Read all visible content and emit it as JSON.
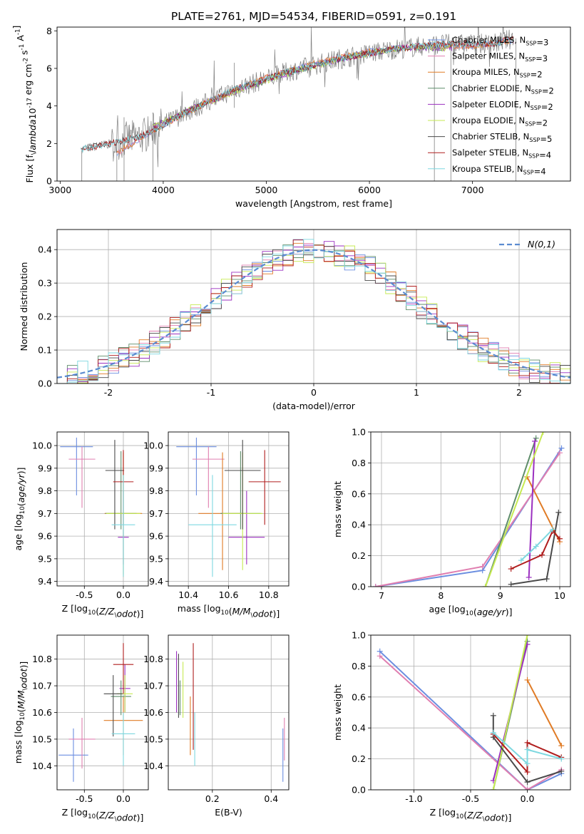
{
  "title": "PLATE=2761, MJD=54534, FIBERID=0591, z=0.191",
  "colors": {
    "Chabrier MILES": "#6b8ee0",
    "Salpeter MILES": "#e07fb0",
    "Kroupa MILES": "#e07b25",
    "Chabrier ELODIE": "#5e8d6a",
    "Salpeter ELODIE": "#9b30c0",
    "Kroupa ELODIE": "#c6ea52",
    "Chabrier STELIB": "#4a4a4a",
    "Salpeter STELIB": "#b01e1e",
    "Kroupa STELIB": "#7ed8e0"
  },
  "chart_data": [
    {
      "type": "line",
      "panel": "spectrum",
      "xlabel": "wavelength [Angstrom, rest frame]",
      "ylabel": "Flux [f$_\\lambda$10$^{-17}$ erg cm$^{-2}$ s$^{-1}$ A$^{-1}$]",
      "xlim": [
        2970,
        7950
      ],
      "ylim": [
        0,
        8.2
      ],
      "xticks": [
        3000,
        4000,
        5000,
        6000,
        7000
      ],
      "yticks": [
        0,
        2,
        4,
        6,
        8
      ],
      "grid": false,
      "legend_position": "lower right",
      "data_color": "#808080",
      "series": [
        {
          "name": "Chabrier MILES, N$_{SSP}$=3",
          "x": [
            3550,
            4000,
            4500,
            5000,
            5500,
            6000,
            6500,
            7000,
            7400
          ],
          "values": [
            1.5,
            3.0,
            4.4,
            5.5,
            6.3,
            6.9,
            7.2,
            7.2,
            7.5
          ]
        },
        {
          "name": "Salpeter MILES, N$_{SSP}$=3",
          "x": [
            3550,
            4000,
            4500,
            5000,
            5500,
            6000,
            6500,
            7000,
            7400
          ],
          "values": [
            1.5,
            3.0,
            4.4,
            5.5,
            6.3,
            6.9,
            7.2,
            7.2,
            7.5
          ]
        },
        {
          "name": "Kroupa MILES, N$_{SSP}$=2",
          "x": [
            3550,
            4000,
            4500,
            5000,
            5500,
            6000,
            6500,
            7000,
            7400
          ],
          "values": [
            1.5,
            3.0,
            4.4,
            5.5,
            6.3,
            6.9,
            7.2,
            7.2,
            7.5
          ]
        },
        {
          "name": "Chabrier ELODIE, N$_{SSP}$=2",
          "x": [
            3900,
            4300,
            4800,
            5300,
            5800,
            6300,
            6800
          ],
          "values": [
            2.9,
            3.9,
            5.0,
            5.9,
            6.6,
            7.1,
            7.1
          ]
        },
        {
          "name": "Salpeter ELODIE, N$_{SSP}$=2",
          "x": [
            3900,
            4300,
            4800,
            5300,
            5800,
            6300,
            6800
          ],
          "values": [
            2.9,
            3.9,
            5.0,
            5.9,
            6.6,
            7.1,
            7.1
          ]
        },
        {
          "name": "Kroupa ELODIE, N$_{SSP}$=2",
          "x": [
            3900,
            4300,
            4800,
            5300,
            5800,
            6300,
            6800
          ],
          "values": [
            2.9,
            3.9,
            5.0,
            5.9,
            6.6,
            7.1,
            7.1
          ]
        },
        {
          "name": "Chabrier STELIB, N$_{SSP}$=5",
          "x": [
            3200,
            3500,
            3800,
            4200,
            4700,
            5200,
            5700,
            6200,
            6700,
            7200,
            7400
          ],
          "values": [
            1.7,
            2.0,
            2.4,
            3.6,
            4.9,
            5.8,
            6.5,
            7.0,
            7.3,
            7.3,
            7.6
          ]
        },
        {
          "name": "Salpeter STELIB, N$_{SSP}$=4",
          "x": [
            3200,
            3500,
            3800,
            4200,
            4700,
            5200,
            5700,
            6200,
            6700,
            7200,
            7400
          ],
          "values": [
            1.7,
            2.0,
            2.4,
            3.6,
            4.9,
            5.8,
            6.5,
            7.0,
            7.3,
            7.3,
            7.6
          ]
        },
        {
          "name": "Kroupa STELIB, N$_{SSP}$=4",
          "x": [
            3200,
            3500,
            3800,
            4200,
            4700,
            5200,
            5700,
            6200,
            6700,
            7200,
            7400
          ],
          "values": [
            1.7,
            2.0,
            2.4,
            3.6,
            4.9,
            5.8,
            6.5,
            7.0,
            7.3,
            7.3,
            7.6
          ]
        }
      ]
    },
    {
      "type": "line",
      "panel": "residuals",
      "xlabel": "(data-model)/error",
      "ylabel": "Normed distribution",
      "xlim": [
        -2.5,
        2.5
      ],
      "ylim": [
        0,
        0.46
      ],
      "xticks": [
        -2,
        -1,
        0,
        1,
        2
      ],
      "yticks": [
        0.0,
        0.1,
        0.2,
        0.3,
        0.4
      ],
      "grid": true,
      "legend_position": "upper right",
      "legend": "$\\mathcal{N}(0,1)$",
      "gaussian": {
        "mean": 0,
        "sigma": 1,
        "style": "dashed",
        "color": "#5b8bd0"
      }
    },
    {
      "type": "scatter",
      "panel": "age-vs-Z",
      "xlabel": "Z [log$_{10}$($Z/Z_\\odot$)]",
      "ylabel": "age  [log$_{10}$($age/yr$)]",
      "xlim": [
        -0.85,
        0.32
      ],
      "ylim": [
        9.38,
        10.06
      ],
      "xticks": [
        -0.5,
        0.0
      ],
      "yticks": [
        9.4,
        9.5,
        9.6,
        9.7,
        9.8,
        9.9,
        10.0
      ],
      "grid": true,
      "points": [
        {
          "name": "Chabrier MILES",
          "x": -0.6,
          "y": 9.995,
          "xerr": 0.21,
          "ylo": 9.78,
          "yhi": 10.035
        },
        {
          "name": "Salpeter MILES",
          "x": -0.53,
          "y": 9.94,
          "xerr": 0.17,
          "ylo": 9.725,
          "yhi": 9.995
        },
        {
          "name": "Kroupa MILES",
          "x": 0.0,
          "y": 9.7,
          "xerr": 0.24,
          "ylo": 9.42,
          "yhi": 9.97
        },
        {
          "name": "Chabrier ELODIE",
          "x": -0.03,
          "y": 9.7,
          "xerr": 0.2,
          "ylo": 9.63,
          "yhi": 9.975
        },
        {
          "name": "Salpeter ELODIE",
          "x": 0.0,
          "y": 9.595,
          "xerr": 0.07,
          "ylo": 9.475,
          "yhi": 9.8
        },
        {
          "name": "Kroupa ELODIE",
          "x": 0.0,
          "y": 9.7,
          "xerr": 0.22,
          "ylo": 9.43,
          "yhi": 9.97
        },
        {
          "name": "Chabrier STELIB",
          "x": -0.11,
          "y": 9.89,
          "xerr": 0.12,
          "ylo": 9.63,
          "yhi": 10.025
        },
        {
          "name": "Salpeter STELIB",
          "x": 0.0,
          "y": 9.84,
          "xerr": 0.13,
          "ylo": 9.65,
          "yhi": 9.98
        },
        {
          "name": "Kroupa STELIB",
          "x": 0.0,
          "y": 9.65,
          "xerr": 0.15,
          "ylo": 9.42,
          "yhi": 9.87
        }
      ]
    },
    {
      "type": "scatter",
      "panel": "age-vs-mass",
      "xlabel": "mass [log$_{10}$($M/M_\\odot$)]",
      "xlim": [
        10.3,
        10.9
      ],
      "ylim": [
        9.38,
        10.06
      ],
      "xticks": [
        10.4,
        10.6,
        10.8
      ],
      "yticks": [
        9.4,
        9.5,
        9.6,
        9.7,
        9.8,
        9.9,
        10.0
      ],
      "grid": true,
      "points": [
        {
          "name": "Chabrier MILES",
          "x": 10.44,
          "y": 9.995,
          "xerr": 0.1,
          "ylo": 9.78,
          "yhi": 10.035
        },
        {
          "name": "Salpeter MILES",
          "x": 10.5,
          "y": 9.94,
          "xerr": 0.08,
          "ylo": 9.725,
          "yhi": 9.995
        },
        {
          "name": "Kroupa MILES",
          "x": 10.57,
          "y": 9.7,
          "xerr": 0.12,
          "ylo": 9.45,
          "yhi": 9.97
        },
        {
          "name": "Chabrier ELODIE",
          "x": 10.66,
          "y": 9.7,
          "xerr": 0.1,
          "ylo": 9.63,
          "yhi": 9.975
        },
        {
          "name": "Salpeter ELODIE",
          "x": 10.69,
          "y": 9.595,
          "xerr": 0.09,
          "ylo": 9.475,
          "yhi": 9.8
        },
        {
          "name": "Kroupa ELODIE",
          "x": 10.67,
          "y": 9.7,
          "xerr": 0.1,
          "ylo": 9.45,
          "yhi": 9.97
        },
        {
          "name": "Chabrier STELIB",
          "x": 10.67,
          "y": 9.89,
          "xerr": 0.09,
          "ylo": 9.63,
          "yhi": 10.025
        },
        {
          "name": "Salpeter STELIB",
          "x": 10.78,
          "y": 9.84,
          "xerr": 0.08,
          "ylo": 9.65,
          "yhi": 9.98
        },
        {
          "name": "Kroupa STELIB",
          "x": 10.52,
          "y": 9.65,
          "xerr": 0.12,
          "ylo": 9.42,
          "yhi": 9.87
        }
      ]
    },
    {
      "type": "line",
      "panel": "mass-weight-vs-age",
      "xlabel": "age  [log$_{10}$($age/yr$)]",
      "ylabel": "mass weight",
      "xlim": [
        6.82,
        10.18
      ],
      "ylim": [
        0,
        1
      ],
      "xticks": [
        7,
        8,
        9,
        10
      ],
      "yticks": [
        0.0,
        0.2,
        0.4,
        0.6,
        0.8,
        1.0
      ],
      "grid": true,
      "series": [
        {
          "name": "Chabrier MILES",
          "x": [
            6.9,
            8.7,
            10.03
          ],
          "values": [
            0.0,
            0.105,
            0.895
          ]
        },
        {
          "name": "Salpeter MILES",
          "x": [
            6.9,
            8.7,
            10.0
          ],
          "values": [
            0.0,
            0.13,
            0.865
          ]
        },
        {
          "name": "Kroupa MILES",
          "x": [
            9.45,
            10.0
          ],
          "values": [
            0.71,
            0.29
          ]
        },
        {
          "name": "Chabrier ELODIE",
          "x": [
            8.75,
            9.6
          ],
          "values": [
            0.0,
            0.96
          ]
        },
        {
          "name": "Salpeter ELODIE",
          "x": [
            9.48,
            9.58
          ],
          "values": [
            0.06,
            0.94
          ]
        },
        {
          "name": "Kroupa ELODIE",
          "x": [
            8.75,
            9.72
          ],
          "values": [
            0.0,
            1.0
          ]
        },
        {
          "name": "Chabrier STELIB",
          "x": [
            9.18,
            9.78,
            9.98
          ],
          "values": [
            0.015,
            0.05,
            0.48
          ]
        },
        {
          "name": "Salpeter STELIB",
          "x": [
            9.18,
            9.7,
            9.88,
            10.0
          ],
          "values": [
            0.115,
            0.205,
            0.36,
            0.31
          ]
        },
        {
          "name": "Kroupa STELIB",
          "x": [
            9.35,
            9.6,
            9.88
          ],
          "values": [
            0.17,
            0.26,
            0.37
          ]
        }
      ]
    },
    {
      "type": "scatter",
      "panel": "mass-vs-Z",
      "xlabel": "Z [log$_{10}$($Z/Z_\\odot$)]",
      "ylabel": "mass [log$_{10}$($M/M_\\odot$)]",
      "xlim": [
        -0.85,
        0.32
      ],
      "ylim": [
        10.31,
        10.89
      ],
      "xticks": [
        -0.5,
        0.0
      ],
      "yticks": [
        10.4,
        10.5,
        10.6,
        10.7,
        10.8
      ],
      "grid": true,
      "points": [
        {
          "name": "Chabrier MILES",
          "x": -0.64,
          "y": 10.44,
          "xerr": 0.19,
          "ylo": 10.34,
          "yhi": 10.54
        },
        {
          "name": "Salpeter MILES",
          "x": -0.53,
          "y": 10.5,
          "xerr": 0.17,
          "ylo": 10.39,
          "yhi": 10.58
        },
        {
          "name": "Kroupa MILES",
          "x": 0.0,
          "y": 10.57,
          "xerr": 0.25,
          "ylo": 10.44,
          "yhi": 10.66
        },
        {
          "name": "Chabrier ELODIE",
          "x": -0.03,
          "y": 10.66,
          "xerr": 0.13,
          "ylo": 10.59,
          "yhi": 10.72
        },
        {
          "name": "Salpeter ELODIE",
          "x": 0.02,
          "y": 10.69,
          "xerr": 0.07,
          "ylo": 10.6,
          "yhi": 10.78
        },
        {
          "name": "Kroupa ELODIE",
          "x": 0.02,
          "y": 10.67,
          "xerr": 0.1,
          "ylo": 10.6,
          "yhi": 10.74
        },
        {
          "name": "Chabrier STELIB",
          "x": -0.13,
          "y": 10.67,
          "xerr": 0.12,
          "ylo": 10.51,
          "yhi": 10.74
        },
        {
          "name": "Salpeter STELIB",
          "x": 0.0,
          "y": 10.78,
          "xerr": 0.13,
          "ylo": 10.67,
          "yhi": 10.86
        },
        {
          "name": "Kroupa STELIB",
          "x": 0.0,
          "y": 10.52,
          "xerr": 0.15,
          "ylo": 10.4,
          "yhi": 10.6
        }
      ]
    },
    {
      "type": "scatter",
      "panel": "mass-vs-EBV",
      "xlabel": "E(B-V)",
      "xlim": [
        0.05,
        0.46
      ],
      "ylim": [
        10.31,
        10.89
      ],
      "xticks": [
        0.2,
        0.4
      ],
      "yticks": [
        10.4,
        10.5,
        10.6,
        10.7,
        10.8
      ],
      "grid": true,
      "points": [
        {
          "name": "Chabrier MILES",
          "x": 0.44,
          "y": 10.44,
          "ylo": 10.34,
          "yhi": 10.54
        },
        {
          "name": "Salpeter MILES",
          "x": 0.445,
          "y": 10.5,
          "ylo": 10.42,
          "yhi": 10.58
        },
        {
          "name": "Kroupa MILES",
          "x": 0.125,
          "y": 10.57,
          "ylo": 10.44,
          "yhi": 10.66
        },
        {
          "name": "Chabrier ELODIE",
          "x": 0.09,
          "y": 10.66,
          "ylo": 10.59,
          "yhi": 10.72
        },
        {
          "name": "Salpeter ELODIE",
          "x": 0.078,
          "y": 10.69,
          "ylo": 10.6,
          "yhi": 10.83
        },
        {
          "name": "Kroupa ELODIE",
          "x": 0.1,
          "y": 10.67,
          "ylo": 10.58,
          "yhi": 10.79
        },
        {
          "name": "Chabrier STELIB",
          "x": 0.085,
          "y": 10.67,
          "ylo": 10.58,
          "yhi": 10.82
        },
        {
          "name": "Salpeter STELIB",
          "x": 0.135,
          "y": 10.78,
          "ylo": 10.46,
          "yhi": 10.86
        },
        {
          "name": "Kroupa STELIB",
          "x": 0.14,
          "y": 10.52,
          "ylo": 10.4,
          "yhi": 10.6
        }
      ]
    },
    {
      "type": "line",
      "panel": "mass-weight-vs-Z",
      "xlabel": "Z [log$_{10}$($Z/Z_\\odot$)]",
      "ylabel": "mass weight",
      "xlim": [
        -1.38,
        0.38
      ],
      "ylim": [
        0,
        1
      ],
      "xticks": [
        -1.0,
        -0.5,
        0.0
      ],
      "yticks": [
        0.0,
        0.2,
        0.4,
        0.6,
        0.8,
        1.0
      ],
      "grid": true,
      "series": [
        {
          "name": "Chabrier MILES",
          "x": [
            -1.3,
            0.0,
            0.3
          ],
          "values": [
            0.895,
            0.0,
            0.105
          ]
        },
        {
          "name": "Salpeter MILES",
          "x": [
            -1.3,
            0.0,
            0.3
          ],
          "values": [
            0.865,
            0.0,
            0.13
          ]
        },
        {
          "name": "Kroupa MILES",
          "x": [
            0.0,
            0.3
          ],
          "values": [
            0.71,
            0.285
          ]
        },
        {
          "name": "Chabrier ELODIE",
          "x": [
            -0.3,
            0.0
          ],
          "values": [
            0.0,
            0.96
          ]
        },
        {
          "name": "Salpeter ELODIE",
          "x": [
            -0.3,
            0.0
          ],
          "values": [
            0.06,
            0.94
          ]
        },
        {
          "name": "Kroupa ELODIE",
          "x": [
            -0.3,
            0.0
          ],
          "values": [
            0.0,
            1.0
          ]
        },
        {
          "name": "Chabrier STELIB",
          "x": [
            -0.3,
            -0.3,
            0.0,
            0.3
          ],
          "values": [
            0.48,
            0.34,
            0.05,
            0.12
          ]
        },
        {
          "name": "Salpeter STELIB",
          "x": [
            -0.3,
            0.0,
            0.0,
            0.3
          ],
          "values": [
            0.36,
            0.115,
            0.305,
            0.21
          ]
        },
        {
          "name": "Kroupa STELIB",
          "x": [
            -0.3,
            0.0,
            0.0,
            0.3
          ],
          "values": [
            0.37,
            0.17,
            0.26,
            0.2
          ]
        }
      ]
    }
  ]
}
